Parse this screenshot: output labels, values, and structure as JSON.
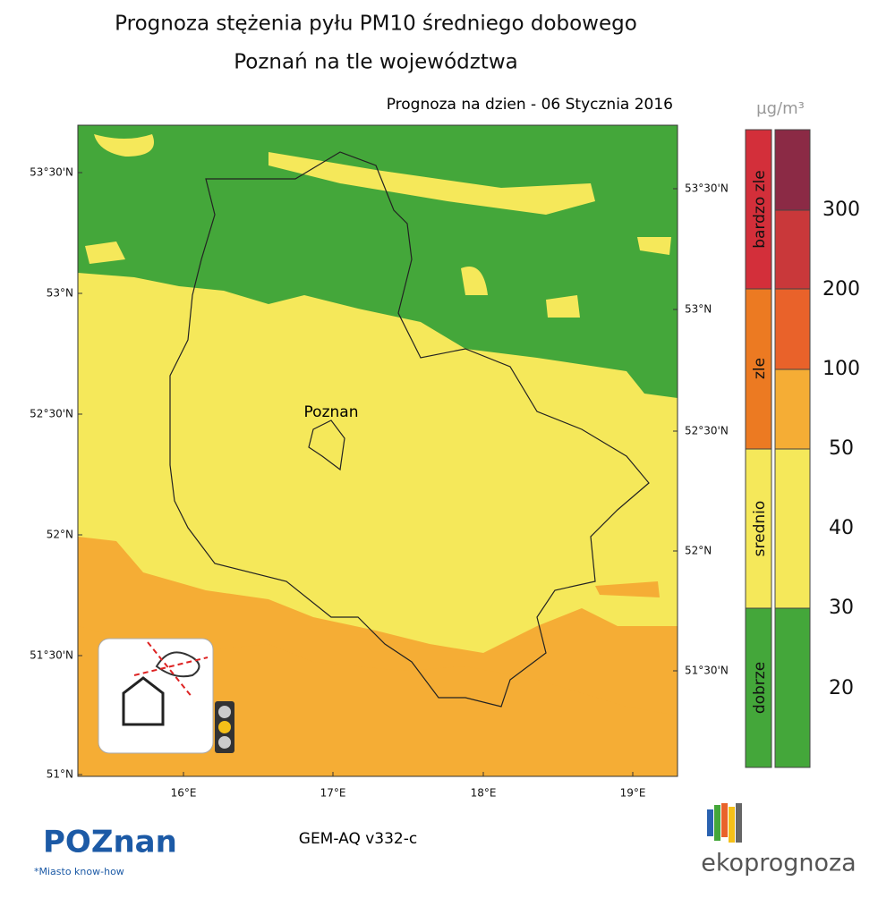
{
  "header": {
    "title": "Prognoza stężenia pyłu PM10 średniego dobowego",
    "subtitle": "Poznań na tle województwa",
    "date": "Prognoza na dzien -  06 Stycznia 2016"
  },
  "map": {
    "city": "Poznan",
    "lat_labels_left": [
      "53°30'N",
      "53°N",
      "52°30'N",
      "52°N",
      "51°30'N",
      "51°N"
    ],
    "lat_labels_right": [
      "53°30'N",
      "53°N",
      "52°30'N",
      "52°N",
      "51°30'N"
    ],
    "lon_labels": [
      "16°E",
      "17°E",
      "18°E",
      "19°E"
    ]
  },
  "legend": {
    "unit": "µg/m³",
    "categories": [
      "bardzo zle",
      "zle",
      "srednio",
      "dobrze"
    ],
    "scale": [
      300,
      200,
      100,
      50,
      40,
      30,
      20
    ]
  },
  "footer": {
    "model": "GEM-AQ v332-c",
    "logo_left": "POZnan",
    "logo_left_tagline": "*Miasto know-how",
    "logo_right": "ekoprognoza"
  }
}
